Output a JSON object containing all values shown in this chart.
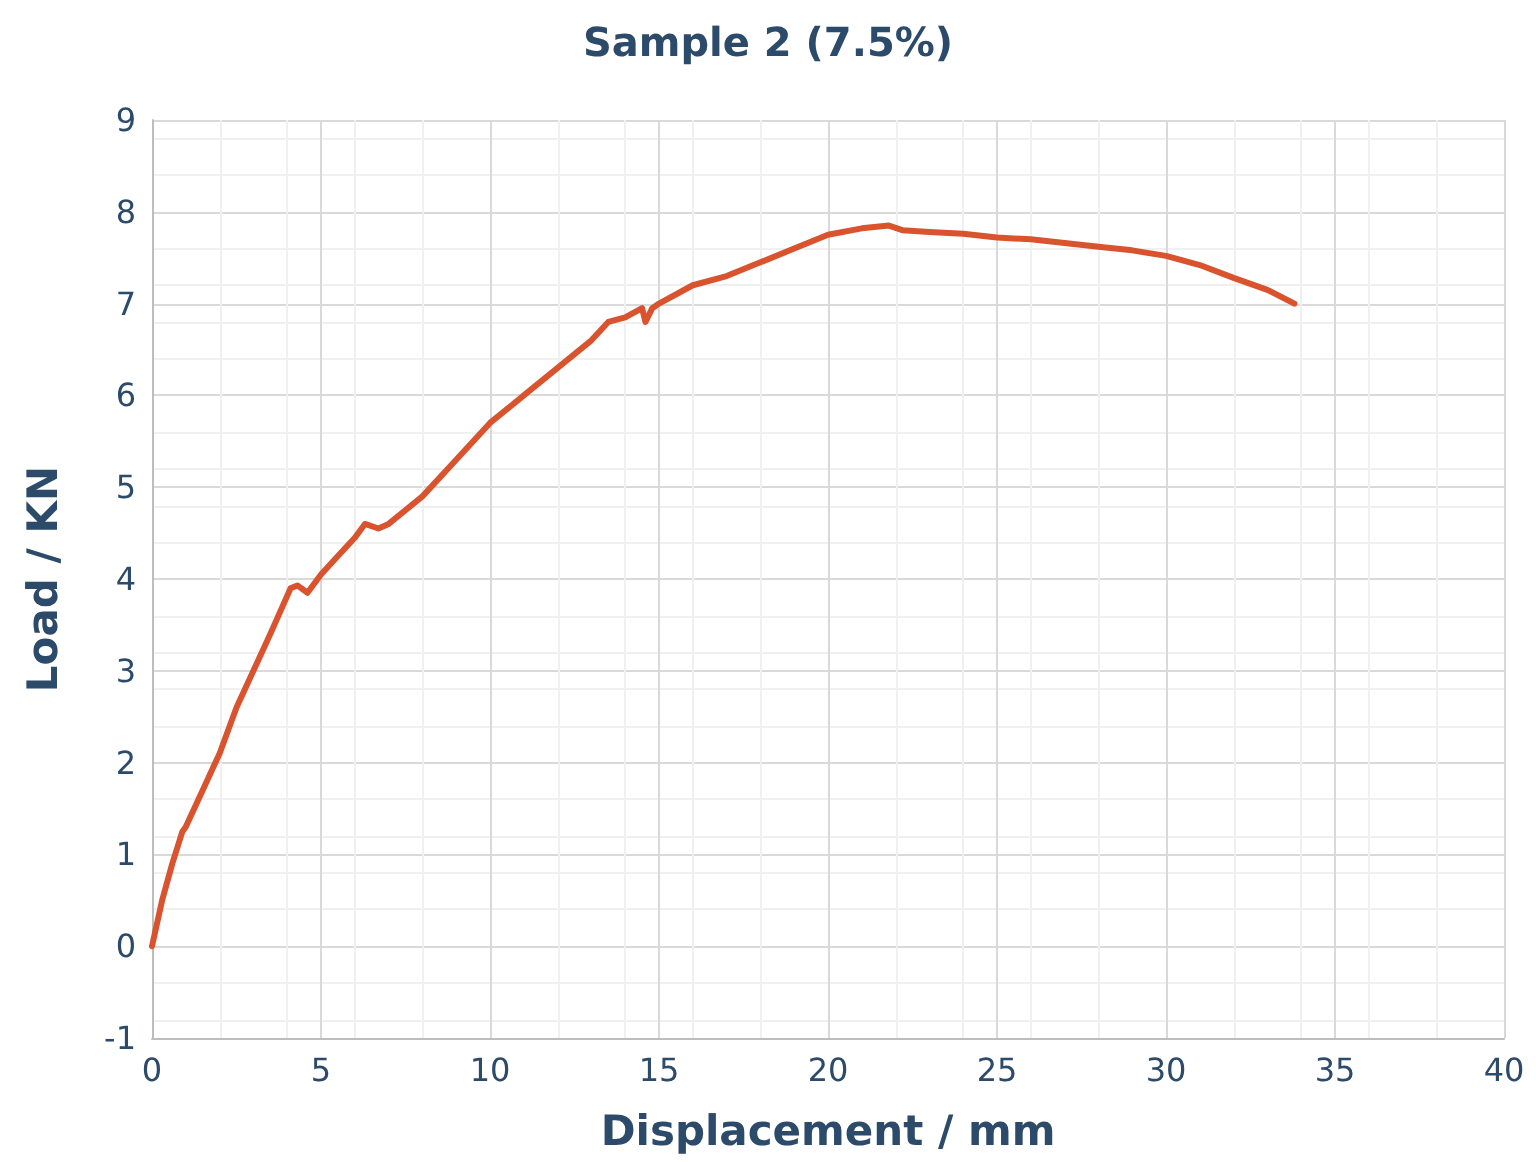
{
  "chart_data": {
    "type": "line",
    "title": "Sample 2 (7.5%)",
    "xlabel": "Displacement / mm",
    "ylabel": "Load / KN",
    "x": [
      0,
      0.3,
      0.6,
      0.9,
      1,
      1.5,
      2,
      2.5,
      3,
      3.5,
      3.8,
      4.1,
      4.3,
      4.6,
      5,
      5.5,
      6,
      6.3,
      6.7,
      7,
      8,
      9,
      10,
      11,
      12,
      13,
      13.5,
      14,
      14.5,
      14.6,
      14.8,
      15,
      16,
      17,
      18,
      19,
      20,
      21,
      21.8,
      22.2,
      23,
      24,
      25,
      26,
      27,
      28,
      29,
      30,
      31,
      32,
      33,
      33.8
    ],
    "series": [
      {
        "color": "#d9532f",
        "values": [
          0,
          0.5,
          0.9,
          1.25,
          1.3,
          1.7,
          2.1,
          2.6,
          3.0,
          3.4,
          3.65,
          3.9,
          3.93,
          3.85,
          4.05,
          4.25,
          4.45,
          4.6,
          4.55,
          4.6,
          4.9,
          5.3,
          5.7,
          6.0,
          6.3,
          6.6,
          6.8,
          6.85,
          6.95,
          6.8,
          6.95,
          7.0,
          7.2,
          7.3,
          7.45,
          7.6,
          7.75,
          7.82,
          7.85,
          7.8,
          7.78,
          7.76,
          7.72,
          7.7,
          7.66,
          7.62,
          7.58,
          7.52,
          7.42,
          7.28,
          7.15,
          7.0
        ]
      }
    ],
    "xlim": [
      0,
      40
    ],
    "xticks": [
      0,
      5,
      10,
      15,
      20,
      25,
      30,
      35,
      40
    ],
    "ylim": [
      -1,
      9
    ],
    "yticks": [
      -1,
      0,
      1,
      2,
      3,
      4,
      5,
      6,
      7,
      8,
      9
    ],
    "grid": true,
    "marker": "none",
    "line_style": "solid"
  }
}
